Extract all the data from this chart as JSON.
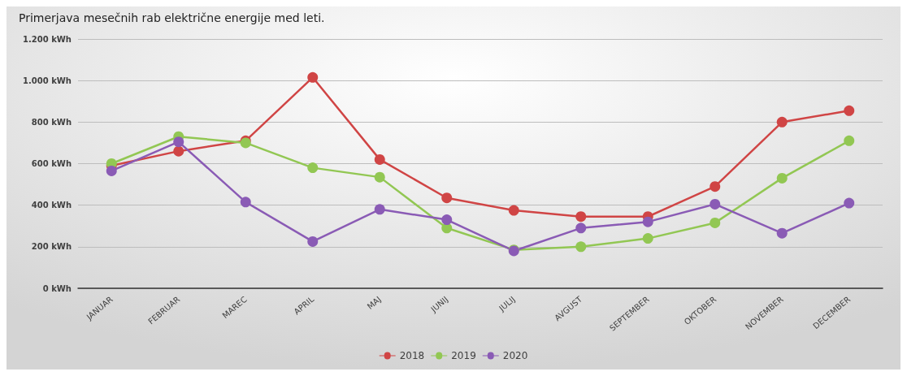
{
  "chart_data": {
    "type": "line",
    "title": "Primerjava mesečnih rab električne energije med leti.",
    "categories": [
      "JANUAR",
      "FEBRUAR",
      "MAREC",
      "APRIL",
      "MAJ",
      "JUNIJ",
      "JULIJ",
      "AVGUST",
      "SEPTEMBER",
      "OKTOBER",
      "NOVEMBER",
      "DECEMBER"
    ],
    "series": [
      {
        "name": "2018",
        "color": "#d04545",
        "values": [
          590,
          660,
          710,
          1015,
          620,
          435,
          375,
          345,
          345,
          490,
          800,
          855
        ]
      },
      {
        "name": "2019",
        "color": "#92c753",
        "values": [
          600,
          730,
          700,
          580,
          535,
          290,
          185,
          200,
          240,
          315,
          530,
          710
        ]
      },
      {
        "name": "2020",
        "color": "#8a5bb5",
        "values": [
          565,
          705,
          415,
          225,
          380,
          330,
          180,
          290,
          320,
          405,
          265,
          410
        ]
      }
    ],
    "ylim": [
      0,
      1200
    ],
    "yticks": [
      {
        "value": 0,
        "label": "0 kWh"
      },
      {
        "value": 200,
        "label": "200 kWh"
      },
      {
        "value": 400,
        "label": "400 kWh"
      },
      {
        "value": 600,
        "label": "600 kWh"
      },
      {
        "value": 800,
        "label": "800 kWh"
      },
      {
        "value": 1000,
        "label": "1.000 kWh"
      },
      {
        "value": 1200,
        "label": "1.200 kWh"
      }
    ],
    "grid": "y",
    "legend": "bottom",
    "marker": "circle",
    "line_style": "solid"
  }
}
